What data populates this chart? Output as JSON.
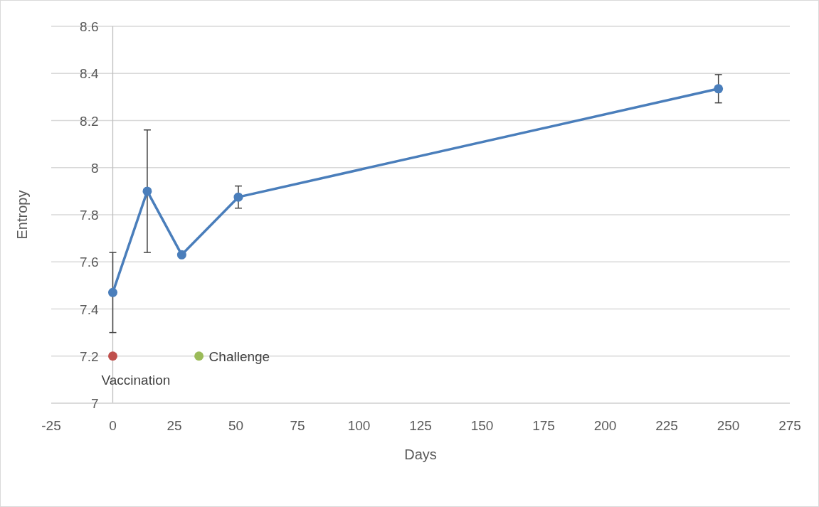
{
  "chart_data": {
    "type": "line",
    "xlabel": "Days",
    "ylabel": "Entropy",
    "xlim": [
      -25,
      275
    ],
    "ylim": [
      7,
      8.6
    ],
    "xticks": [
      -25,
      0,
      25,
      50,
      75,
      100,
      125,
      150,
      175,
      200,
      225,
      250,
      275
    ],
    "yticks": [
      7,
      7.2,
      7.4,
      7.6,
      7.8,
      8,
      8.2,
      8.4,
      8.6
    ],
    "grid": "y",
    "marker": "circle",
    "line_style": "solid",
    "series": [
      {
        "color": "#4a7ebb",
        "x": [
          0,
          14,
          28,
          51,
          246
        ],
        "values": [
          7.47,
          7.9,
          7.63,
          7.875,
          8.335
        ],
        "errors": [
          0.17,
          0.26,
          null,
          0.047,
          0.06
        ]
      },
      {
        "name": "Vaccination",
        "type": "scatter",
        "color": "#c0504d",
        "x": [
          0
        ],
        "values": [
          7.2
        ]
      },
      {
        "name": "Challenge",
        "type": "scatter",
        "color": "#9bbb59",
        "x": [
          35
        ],
        "values": [
          7.2
        ]
      }
    ]
  }
}
